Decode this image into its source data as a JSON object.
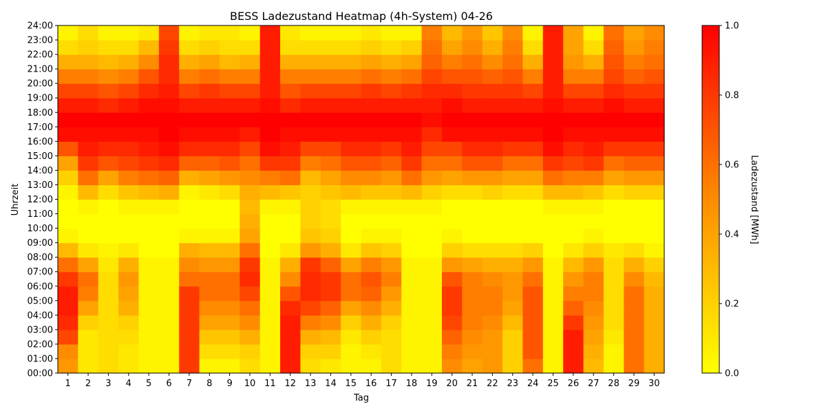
{
  "chart_data": {
    "type": "heatmap",
    "title": "BESS Ladezustand Heatmap (4h-System) 04-26",
    "xlabel": "Tag",
    "ylabel": "Uhrzeit",
    "colorbar_label": "Ladezustand [MWh]",
    "colormap": [
      "#ffff00",
      "#ff8c00",
      "#ff0000"
    ],
    "value_range": [
      0.0,
      1.0
    ],
    "colorbar_ticks": [
      "0.0",
      "0.2",
      "0.4",
      "0.6",
      "0.8",
      "1.0"
    ],
    "x_categories": [
      "1",
      "2",
      "3",
      "4",
      "5",
      "6",
      "7",
      "8",
      "9",
      "10",
      "11",
      "12",
      "13",
      "14",
      "15",
      "16",
      "17",
      "18",
      "19",
      "20",
      "21",
      "22",
      "23",
      "24",
      "25",
      "26",
      "27",
      "28",
      "29",
      "30"
    ],
    "y_ticks": [
      "00:00",
      "01:00",
      "02:00",
      "03:00",
      "04:00",
      "05:00",
      "06:00",
      "07:00",
      "08:00",
      "09:00",
      "10:00",
      "11:00",
      "12:00",
      "13:00",
      "14:00",
      "15:00",
      "16:00",
      "17:00",
      "18:00",
      "19:00",
      "20:00",
      "21:00",
      "22:00",
      "23:00",
      "24:00"
    ],
    "hours": [
      0,
      1,
      2,
      3,
      4,
      5,
      6,
      7,
      8,
      9,
      10,
      11,
      12,
      13,
      14,
      15,
      16,
      17,
      18,
      19,
      20,
      21,
      22,
      23
    ],
    "values_by_day": [
      [
        0.45,
        0.5,
        0.75,
        0.85,
        0.9,
        0.9,
        0.8,
        0.6,
        0.3,
        0.05,
        0,
        0,
        0.05,
        0.2,
        0.4,
        0.7,
        0.95,
        1,
        0.9,
        0.75,
        0.55,
        0.35,
        0.15,
        0.05
      ],
      [
        0.1,
        0.1,
        0.1,
        0.2,
        0.4,
        0.55,
        0.6,
        0.4,
        0.1,
        0,
        0,
        0.05,
        0.3,
        0.6,
        0.8,
        0.9,
        0.95,
        1,
        0.9,
        0.75,
        0.55,
        0.35,
        0.2,
        0.15
      ],
      [
        0.15,
        0.15,
        0.15,
        0.15,
        0.15,
        0.15,
        0.15,
        0.1,
        0.05,
        0,
        0,
        0,
        0.15,
        0.4,
        0.7,
        0.85,
        0.95,
        1,
        0.85,
        0.7,
        0.5,
        0.3,
        0.15,
        0.05
      ],
      [
        0.1,
        0.1,
        0.15,
        0.2,
        0.35,
        0.4,
        0.45,
        0.35,
        0.1,
        0,
        0,
        0.05,
        0.25,
        0.55,
        0.75,
        0.85,
        0.95,
        1,
        0.9,
        0.75,
        0.55,
        0.35,
        0.15,
        0.05
      ],
      [
        0.05,
        0.05,
        0.05,
        0.05,
        0.05,
        0.05,
        0.05,
        0.05,
        0,
        0,
        0,
        0.05,
        0.3,
        0.6,
        0.8,
        0.9,
        0.95,
        1,
        0.95,
        0.85,
        0.7,
        0.5,
        0.3,
        0.1
      ],
      [
        0.05,
        0.05,
        0.05,
        0.05,
        0.05,
        0.05,
        0.05,
        0.05,
        0,
        0,
        0,
        0.05,
        0.35,
        0.65,
        0.85,
        0.95,
        1,
        1,
        0.95,
        0.9,
        0.85,
        0.85,
        0.8,
        0.75
      ],
      [
        0.8,
        0.8,
        0.8,
        0.8,
        0.8,
        0.8,
        0.6,
        0.5,
        0.35,
        0.05,
        0,
        0,
        0.05,
        0.35,
        0.65,
        0.85,
        0.95,
        1,
        0.9,
        0.75,
        0.55,
        0.35,
        0.15,
        0.05
      ],
      [
        0.05,
        0.15,
        0.25,
        0.4,
        0.5,
        0.6,
        0.6,
        0.45,
        0.3,
        0.05,
        0,
        0,
        0.1,
        0.4,
        0.65,
        0.85,
        0.95,
        1,
        0.9,
        0.8,
        0.6,
        0.4,
        0.2,
        0.1
      ],
      [
        0.05,
        0.15,
        0.25,
        0.4,
        0.5,
        0.6,
        0.6,
        0.45,
        0.3,
        0.05,
        0,
        0,
        0.15,
        0.45,
        0.7,
        0.85,
        0.95,
        1,
        0.9,
        0.75,
        0.55,
        0.3,
        0.15,
        0.1
      ],
      [
        0.15,
        0.2,
        0.35,
        0.5,
        0.6,
        0.75,
        0.85,
        0.8,
        0.6,
        0.4,
        0.35,
        0.3,
        0.35,
        0.5,
        0.6,
        0.75,
        0.9,
        1,
        0.9,
        0.75,
        0.55,
        0.35,
        0.15,
        0.05
      ],
      [
        0.05,
        0.05,
        0.05,
        0.05,
        0.05,
        0.05,
        0.05,
        0.05,
        0,
        0,
        0,
        0.05,
        0.3,
        0.55,
        0.8,
        0.95,
        1,
        1,
        0.95,
        0.9,
        0.9,
        0.9,
        0.9,
        0.9
      ],
      [
        0.9,
        0.9,
        0.9,
        0.9,
        0.85,
        0.7,
        0.5,
        0.35,
        0.1,
        0,
        0,
        0.05,
        0.25,
        0.6,
        0.8,
        0.9,
        0.95,
        1,
        0.85,
        0.7,
        0.55,
        0.35,
        0.15,
        0.1
      ],
      [
        0.15,
        0.2,
        0.35,
        0.55,
        0.75,
        0.85,
        0.85,
        0.8,
        0.45,
        0.25,
        0.2,
        0.2,
        0.2,
        0.3,
        0.55,
        0.75,
        0.95,
        1,
        0.9,
        0.75,
        0.55,
        0.35,
        0.15,
        0.05
      ],
      [
        0.1,
        0.2,
        0.3,
        0.5,
        0.65,
        0.8,
        0.8,
        0.65,
        0.35,
        0.2,
        0.15,
        0.15,
        0.25,
        0.4,
        0.6,
        0.75,
        0.95,
        1,
        0.9,
        0.75,
        0.55,
        0.35,
        0.15,
        0.05
      ],
      [
        0.05,
        0.05,
        0.1,
        0.2,
        0.4,
        0.6,
        0.6,
        0.4,
        0.1,
        0,
        0,
        0.05,
        0.3,
        0.5,
        0.7,
        0.85,
        0.95,
        1,
        0.9,
        0.75,
        0.55,
        0.35,
        0.15,
        0.05
      ],
      [
        0.05,
        0.1,
        0.2,
        0.35,
        0.5,
        0.65,
        0.7,
        0.55,
        0.25,
        0.05,
        0,
        0.05,
        0.25,
        0.5,
        0.7,
        0.85,
        0.95,
        1,
        0.9,
        0.8,
        0.6,
        0.4,
        0.2,
        0.1
      ],
      [
        0.15,
        0.15,
        0.15,
        0.2,
        0.35,
        0.45,
        0.55,
        0.45,
        0.2,
        0.05,
        0,
        0.05,
        0.25,
        0.45,
        0.65,
        0.8,
        0.95,
        1,
        0.9,
        0.75,
        0.55,
        0.35,
        0.15,
        0.05
      ],
      [
        0.05,
        0.05,
        0.05,
        0.05,
        0.05,
        0.05,
        0.05,
        0.05,
        0,
        0,
        0,
        0.05,
        0.3,
        0.6,
        0.8,
        0.9,
        0.95,
        1,
        0.9,
        0.8,
        0.6,
        0.4,
        0.2,
        0.05
      ],
      [
        0.05,
        0.05,
        0.05,
        0.05,
        0.05,
        0.05,
        0.05,
        0.05,
        0,
        0,
        0,
        0.05,
        0.2,
        0.45,
        0.6,
        0.75,
        0.85,
        0.95,
        0.9,
        0.85,
        0.75,
        0.65,
        0.6,
        0.55
      ],
      [
        0.5,
        0.55,
        0.65,
        0.75,
        0.8,
        0.8,
        0.7,
        0.45,
        0.2,
        0.05,
        0,
        0,
        0.15,
        0.4,
        0.6,
        0.75,
        0.95,
        1,
        0.95,
        0.85,
        0.7,
        0.55,
        0.4,
        0.3
      ],
      [
        0.4,
        0.45,
        0.5,
        0.55,
        0.55,
        0.55,
        0.55,
        0.4,
        0.15,
        0,
        0,
        0,
        0.15,
        0.45,
        0.7,
        0.85,
        0.95,
        1,
        0.9,
        0.8,
        0.7,
        0.6,
        0.5,
        0.45
      ],
      [
        0.45,
        0.45,
        0.45,
        0.5,
        0.55,
        0.55,
        0.5,
        0.35,
        0.15,
        0,
        0,
        0,
        0.2,
        0.45,
        0.7,
        0.85,
        0.95,
        1,
        0.9,
        0.8,
        0.65,
        0.5,
        0.35,
        0.25
      ],
      [
        0.2,
        0.2,
        0.2,
        0.3,
        0.4,
        0.45,
        0.45,
        0.35,
        0.15,
        0,
        0,
        0,
        0.15,
        0.4,
        0.6,
        0.8,
        0.95,
        1,
        0.9,
        0.8,
        0.7,
        0.6,
        0.55,
        0.5
      ],
      [
        0.6,
        0.7,
        0.7,
        0.7,
        0.7,
        0.7,
        0.6,
        0.45,
        0.2,
        0,
        0,
        0,
        0.15,
        0.4,
        0.6,
        0.8,
        0.95,
        1,
        0.9,
        0.75,
        0.55,
        0.35,
        0.15,
        0.05
      ],
      [
        0.05,
        0.05,
        0.05,
        0.05,
        0.05,
        0.05,
        0.05,
        0.05,
        0,
        0,
        0,
        0.05,
        0.3,
        0.6,
        0.8,
        0.95,
        1,
        1,
        0.95,
        0.9,
        0.9,
        0.9,
        0.9,
        0.9
      ],
      [
        0.9,
        0.9,
        0.9,
        0.8,
        0.65,
        0.55,
        0.45,
        0.3,
        0.1,
        0,
        0,
        0.05,
        0.3,
        0.55,
        0.75,
        0.85,
        0.95,
        1,
        0.9,
        0.75,
        0.55,
        0.45,
        0.4,
        0.4
      ],
      [
        0.3,
        0.35,
        0.4,
        0.45,
        0.5,
        0.55,
        0.55,
        0.45,
        0.2,
        0.05,
        0,
        0.05,
        0.25,
        0.55,
        0.8,
        0.9,
        0.95,
        1,
        0.9,
        0.75,
        0.55,
        0.35,
        0.15,
        0.05
      ],
      [
        0.05,
        0.05,
        0.1,
        0.15,
        0.15,
        0.15,
        0.15,
        0.15,
        0.1,
        0,
        0,
        0,
        0.15,
        0.4,
        0.6,
        0.8,
        0.95,
        1,
        0.95,
        0.85,
        0.75,
        0.7,
        0.65,
        0.6
      ],
      [
        0.6,
        0.6,
        0.6,
        0.6,
        0.6,
        0.6,
        0.5,
        0.35,
        0.15,
        0,
        0,
        0,
        0.2,
        0.45,
        0.65,
        0.8,
        0.95,
        1,
        0.9,
        0.8,
        0.65,
        0.55,
        0.45,
        0.4
      ],
      [
        0.35,
        0.35,
        0.35,
        0.35,
        0.35,
        0.35,
        0.3,
        0.2,
        0.05,
        0,
        0,
        0,
        0.2,
        0.45,
        0.65,
        0.8,
        0.95,
        1,
        0.9,
        0.8,
        0.7,
        0.6,
        0.55,
        0.5
      ]
    ]
  }
}
